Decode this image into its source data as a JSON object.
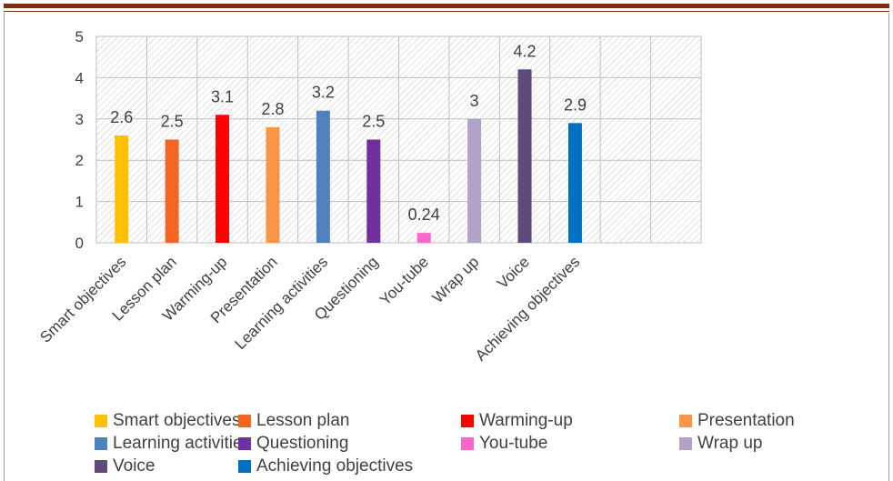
{
  "chart_data": {
    "type": "bar",
    "categories": [
      "Smart objectives",
      "Lesson plan",
      "Warming-up",
      "Presentation",
      "Learning activities",
      "Questioning",
      "You-tube",
      "Wrap up",
      "Voice",
      "Achieving objectives"
    ],
    "values": [
      2.6,
      2.5,
      3.1,
      2.8,
      3.2,
      2.5,
      0.24,
      3,
      4.2,
      2.9
    ],
    "data_labels": [
      "2.6",
      "2.5",
      "3.1",
      "2.8",
      "3.2",
      "2.5",
      "0.24",
      "3",
      "4.2",
      "2.9"
    ],
    "colors": [
      "#FFC000",
      "#F26522",
      "#FF0000",
      "#F79646",
      "#4F81BD",
      "#7030A0",
      "#FF66CC",
      "#B3A2C7",
      "#604A7B",
      "#0070C0"
    ],
    "ylim": [
      0,
      5
    ],
    "yticks": [
      "0",
      "1",
      "2",
      "3",
      "4",
      "5"
    ],
    "grid": true,
    "plot_background": "diagonal-hatch",
    "legend_position": "bottom"
  }
}
